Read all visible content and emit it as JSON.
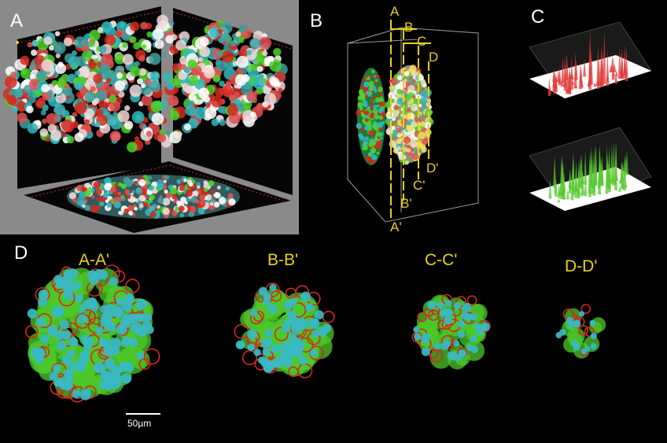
{
  "colors": {
    "panel_bg": "#000000",
    "frame_gray": "#8a8a8a",
    "annotation_yellow": "#e8d020",
    "nuclei_cyan": "#2fb8c0",
    "cytoplasm_green": "#4fd02a",
    "membrane_red": "#d22a1e",
    "white": "#ffffff"
  },
  "panel_a": {
    "label": "A"
  },
  "panel_b": {
    "label": "B",
    "plane_top_labels": [
      "A",
      "B",
      "C",
      "D"
    ],
    "plane_bottom_labels": [
      "A'",
      "B'",
      "C'",
      "D'"
    ]
  },
  "panel_c": {
    "label": "C",
    "plots": [
      "red-intensity-surface",
      "green-intensity-surface"
    ]
  },
  "panel_d": {
    "label": "D",
    "sections": [
      "A-A'",
      "B-B'",
      "C-C'",
      "D-D'"
    ],
    "scale_bar": "50µm"
  }
}
